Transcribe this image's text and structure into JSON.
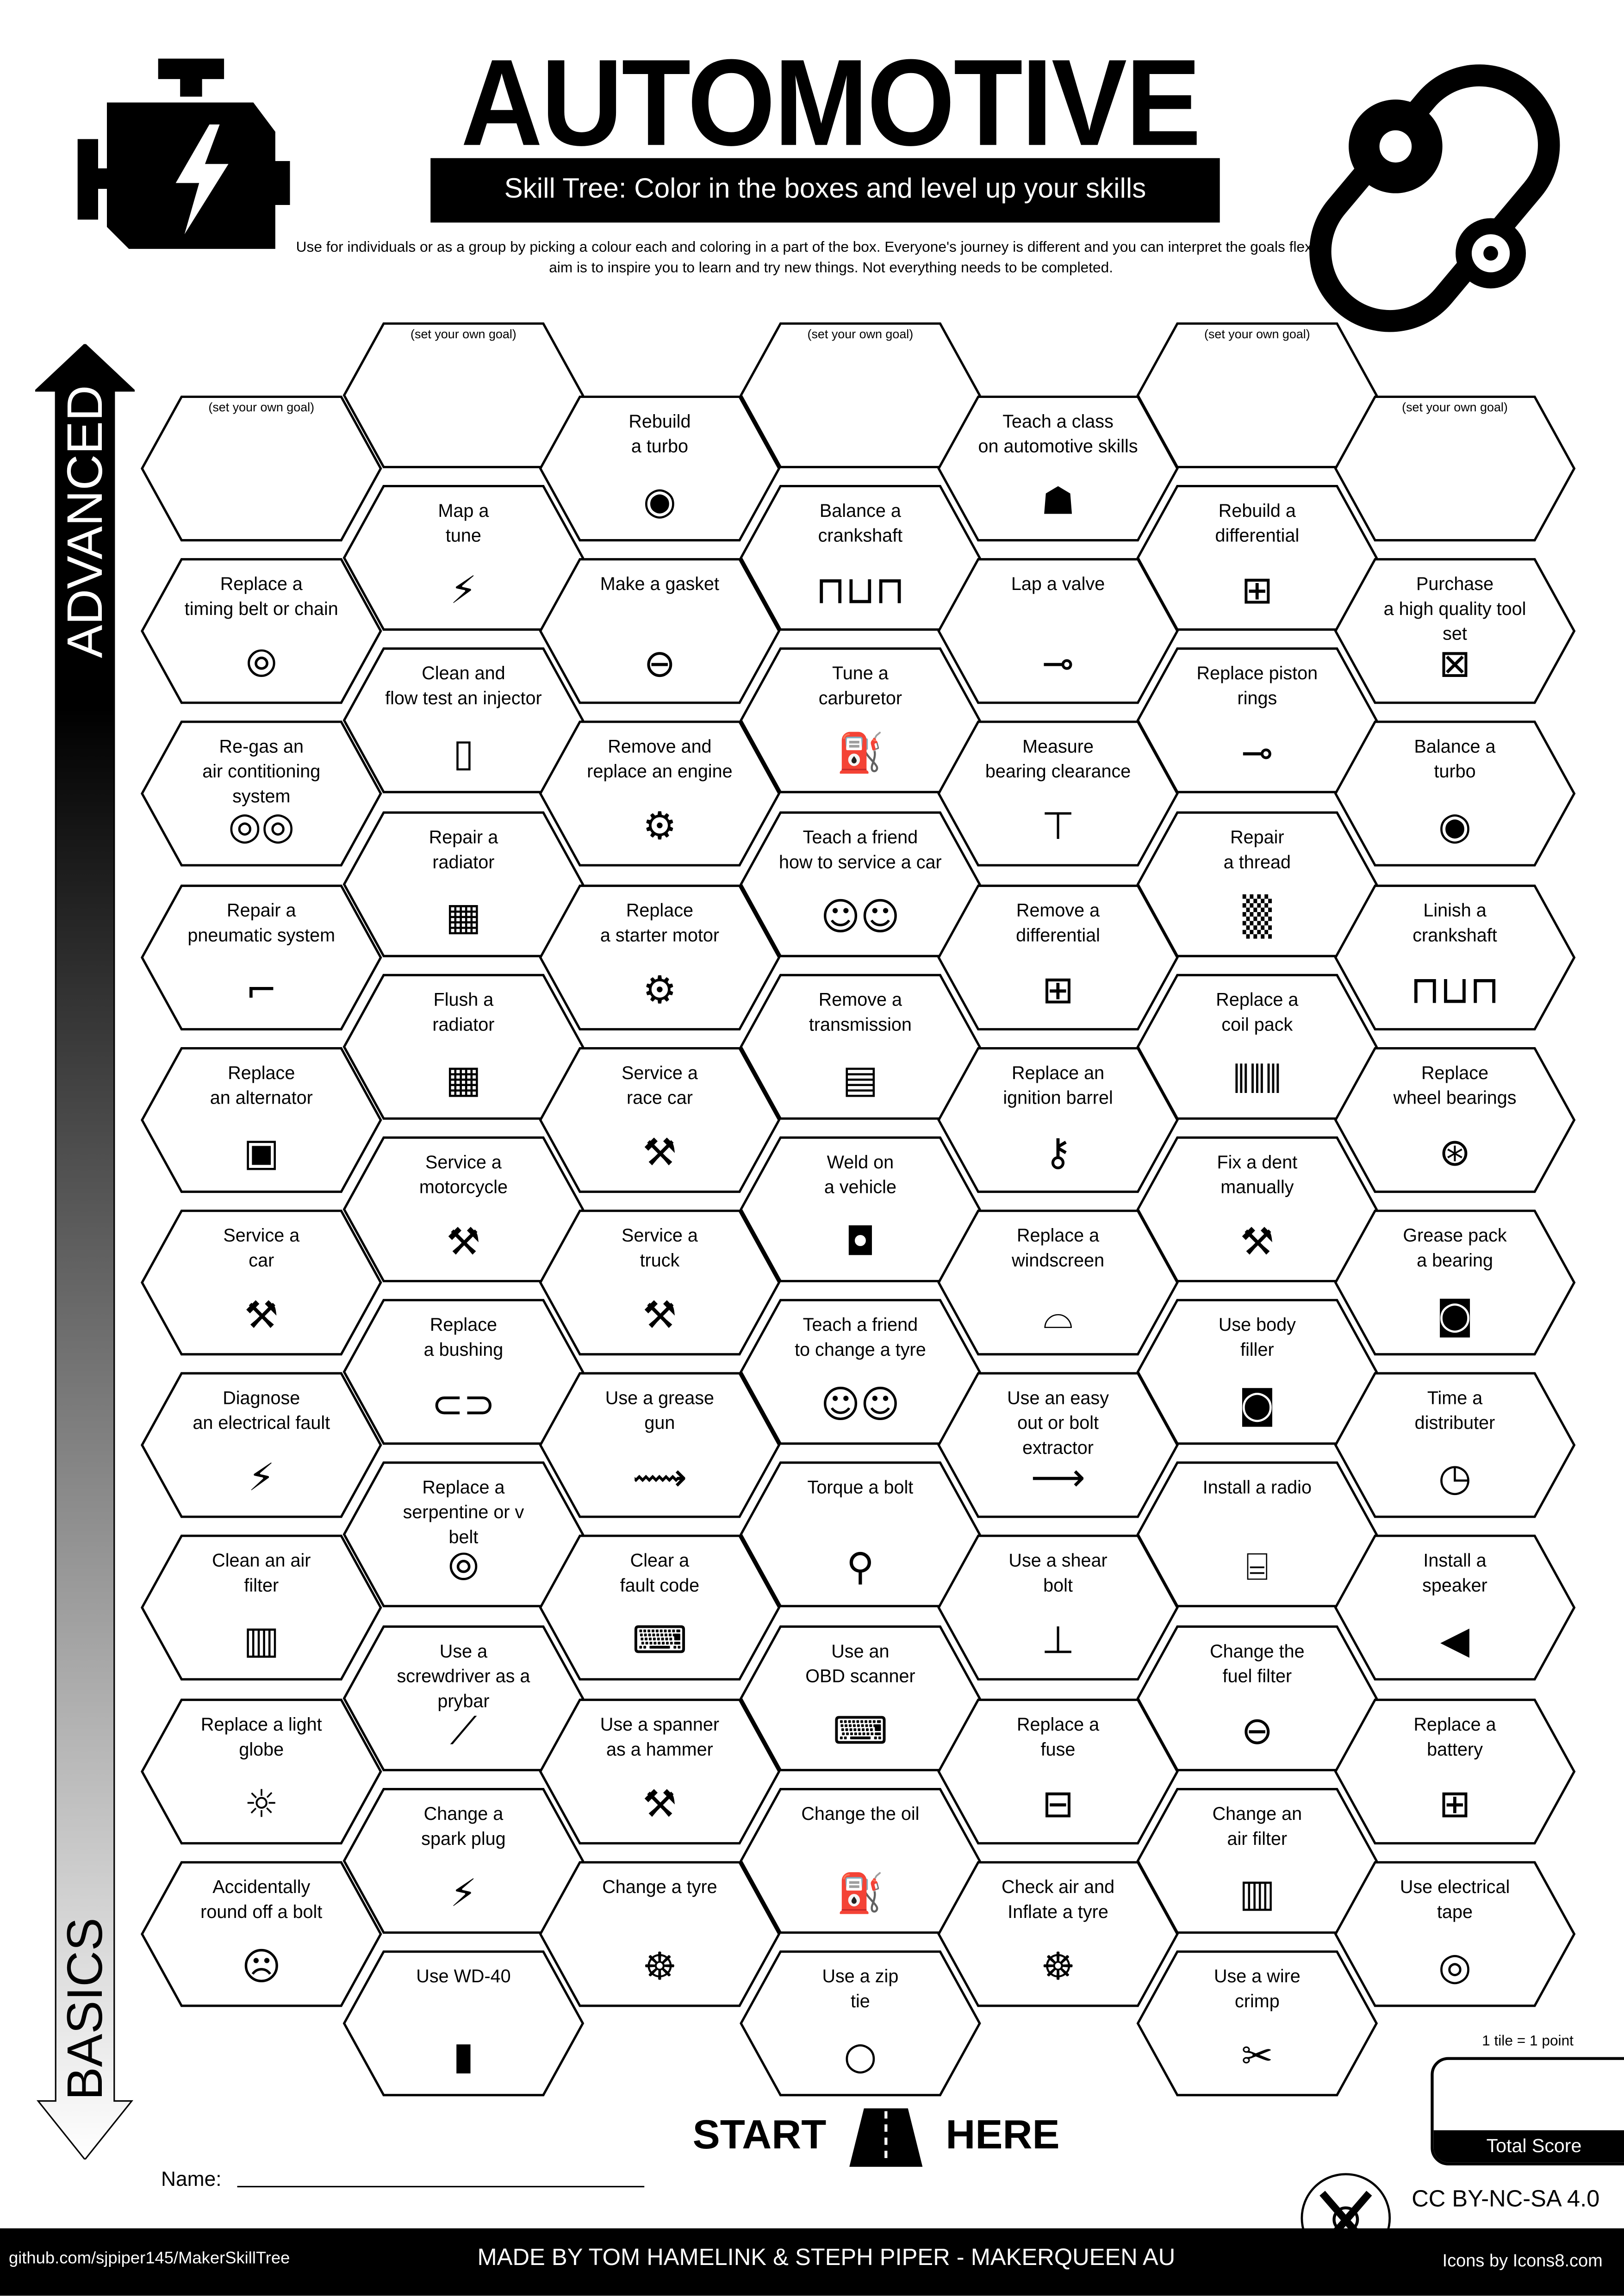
{
  "header": {
    "title": "AUTOMOTIVE",
    "subtitle": "Skill Tree:  Color in the boxes and level up your skills",
    "description": "Use for individuals or as a group by picking a colour each and coloring in a part of the box.  Everyone's journey is different and you can interpret the goals flexibly.  The aim is to inspire you to learn and try new things. Not everything needs to be completed.",
    "left_icon": "engine-check-icon",
    "right_icon": "timing-belt-icon"
  },
  "arrow": {
    "top_label": "ADVANCED",
    "bottom_label": "BASICS"
  },
  "columns": [
    [
      {
        "goal": true,
        "label": "(set your own goal)"
      },
      {
        "label": "Replace a\ntiming belt or chain",
        "icon": "belt"
      },
      {
        "label": "Re-gas an\nair contitioning\nsystem",
        "icon": "gauge"
      },
      {
        "label": "Repair a\npneumatic system",
        "icon": "pipe"
      },
      {
        "label": "Replace\nan alternator",
        "icon": "alternator"
      },
      {
        "label": "Service a\ncar",
        "icon": "tools"
      },
      {
        "label": "Diagnose\nan electrical fault",
        "icon": "lightning"
      },
      {
        "label": "Clean an air\nfilter",
        "icon": "air-filter"
      },
      {
        "label": "Replace a light\nglobe",
        "icon": "bulb"
      },
      {
        "label": "Accidentally\nround off a bolt",
        "icon": "facepalm"
      }
    ],
    [
      {
        "goal": true,
        "label": "(set your own goal)"
      },
      {
        "label": "Map a\ntune",
        "icon": "lightning"
      },
      {
        "label": "Clean and\nflow test an injector",
        "icon": "test-tube"
      },
      {
        "label": "Repair a\nradiator",
        "icon": "radiator"
      },
      {
        "label": "Flush a\nradiator",
        "icon": "radiator"
      },
      {
        "label": "Service a\nmotorcycle",
        "icon": "tools"
      },
      {
        "label": "Replace\na bushing",
        "icon": "bushing"
      },
      {
        "label": "Replace a\nserpentine or v\nbelt",
        "icon": "belt"
      },
      {
        "label": "Use a\nscrewdriver as a\nprybar",
        "icon": "screwdriver"
      },
      {
        "label": "Change a\nspark plug",
        "icon": "lightning"
      },
      {
        "label": "Use WD-40",
        "icon": "spray-can"
      }
    ],
    [
      {
        "label": "Rebuild\na turbo",
        "icon": "turbo"
      },
      {
        "label": "Make a gasket",
        "icon": "gasket"
      },
      {
        "label": "Remove and\nreplace an engine",
        "icon": "engine"
      },
      {
        "label": "Replace\na starter motor",
        "icon": "engine"
      },
      {
        "label": "Service a\nrace car",
        "icon": "tools"
      },
      {
        "label": "Service a\ntruck",
        "icon": "tools"
      },
      {
        "label": "Use a grease\ngun",
        "icon": "grease-gun"
      },
      {
        "label": "Clear a\nfault code",
        "icon": "laptop"
      },
      {
        "label": "Use a spanner\nas a hammer",
        "icon": "wrench"
      },
      {
        "label": "Change a tyre",
        "icon": "wheel"
      }
    ],
    [
      {
        "goal": true,
        "label": "(set your own goal)"
      },
      {
        "label": "Balance a\ncrankshaft",
        "icon": "crankshaft"
      },
      {
        "label": "Tune a\ncarburetor",
        "icon": "carburetor"
      },
      {
        "label": "Teach a friend\nhow to service a car",
        "icon": "teaching"
      },
      {
        "label": "Remove a\ntransmission",
        "icon": "gearbox"
      },
      {
        "label": "Weld on\na vehicle",
        "icon": "welding-mask"
      },
      {
        "label": "Teach a friend\nto change a tyre",
        "icon": "teaching"
      },
      {
        "label": "Torque a bolt",
        "icon": "torque-wrench"
      },
      {
        "label": "Use an\nOBD scanner",
        "icon": "laptop"
      },
      {
        "label": "Change the oil",
        "icon": "oil-can"
      },
      {
        "label": "Use a zip\ntie",
        "icon": "zip-tie"
      }
    ],
    [
      {
        "label": "Teach a class\non automotive skills",
        "icon": "teacher"
      },
      {
        "label": "Lap a valve",
        "icon": "valve"
      },
      {
        "label": "Measure\nbearing clearance",
        "icon": "caliper"
      },
      {
        "label": "Remove a\ndifferential",
        "icon": "differential"
      },
      {
        "label": "Replace an\nignition barrel",
        "icon": "key"
      },
      {
        "label": "Replace a\nwindscreen",
        "icon": "windscreen"
      },
      {
        "label": "Use an easy\nout or bolt\nextractor",
        "icon": "drill-bit"
      },
      {
        "label": "Use a shear\nbolt",
        "icon": "bolt"
      },
      {
        "label": "Replace a\nfuse",
        "icon": "fuse"
      },
      {
        "label": "Check air and\nInflate a tyre",
        "icon": "wheel"
      }
    ],
    [
      {
        "goal": true,
        "label": "(set your own goal)"
      },
      {
        "label": "Rebuild a\ndifferential",
        "icon": "differential"
      },
      {
        "label": "Replace piston\nrings",
        "icon": "valve"
      },
      {
        "label": "Repair\na thread",
        "icon": "thread"
      },
      {
        "label": "Replace a\ncoil pack",
        "icon": "coil-pack"
      },
      {
        "label": "Fix a dent\nmanually",
        "icon": "hammer"
      },
      {
        "label": "Use body\nfiller",
        "icon": "filler-tub"
      },
      {
        "label": "Install a radio",
        "icon": "radio"
      },
      {
        "label": "Change the\nfuel filter",
        "icon": "fuel-filter"
      },
      {
        "label": "Change an\nair filter",
        "icon": "air-filter"
      },
      {
        "label": "Use a wire\ncrimp",
        "icon": "crimper"
      }
    ],
    [
      {
        "goal": true,
        "label": "(set your own goal)"
      },
      {
        "label": "Purchase\na high quality tool\nset",
        "icon": "toolbox"
      },
      {
        "label": "Balance a\nturbo",
        "icon": "turbo"
      },
      {
        "label": "Linish a\ncrankshaft",
        "icon": "crankshaft"
      },
      {
        "label": "Replace\nwheel bearings",
        "icon": "bearing"
      },
      {
        "label": "Grease pack\na bearing",
        "icon": "grease-tub"
      },
      {
        "label": "Time a\ndistributer",
        "icon": "stopwatch"
      },
      {
        "label": "Install a\nspeaker",
        "icon": "speaker"
      },
      {
        "label": "Replace a\nbattery",
        "icon": "battery"
      },
      {
        "label": "Use electrical\ntape",
        "icon": "tape"
      }
    ]
  ],
  "start": {
    "left": "START",
    "right": "HERE",
    "icon": "road-icon"
  },
  "name": {
    "label": "Name:"
  },
  "score": {
    "note": "1 tile = 1 point",
    "label": "Total Score"
  },
  "license": {
    "text": "CC BY-NC-SA 4.0",
    "logo": "maker-skill-tree-logo"
  },
  "footer": {
    "github": "github.com/sjpiper145/MakerSkillTree",
    "credits": "MADE BY TOM HAMELINK & STEPH PIPER  -  MAKERQUEEN AU",
    "icons": "Icons by Icons8.com"
  }
}
